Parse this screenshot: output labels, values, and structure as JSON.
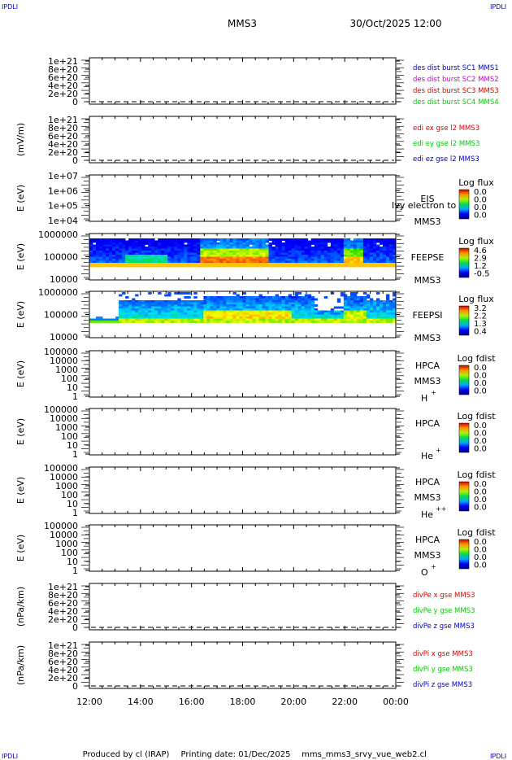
{
  "header": {
    "spacecraft": "MMS3",
    "datetime": "30/Oct/2025 12:00",
    "corner_mark": "IPDLI"
  },
  "footer": {
    "produced_by": "Produced by cl (IRAP)",
    "printing_date": "Printing date: 01/Dec/2025",
    "script_name": "mms_mms3_srvy_vue_web2.cl"
  },
  "x_axis": {
    "ticks": [
      "12:00",
      "14:00",
      "16:00",
      "18:00",
      "20:00",
      "22:00",
      "00:00"
    ]
  },
  "chart_data": [
    {
      "type": "line",
      "id": "des-dist",
      "ylabel": "",
      "yticks": [
        "1e+21",
        "8e+20",
        "6e+20",
        "4e+20",
        "2e+20",
        "0"
      ],
      "legend": [
        {
          "text": "des dist burst SC1 MMS1",
          "color": "#0000cc"
        },
        {
          "text": "des dist burst SC2 MMS2",
          "color": "#cc00cc"
        },
        {
          "text": "des dist burst SC3 MMS3",
          "color": "#dd0000"
        },
        {
          "text": "des dist burst SC4 MMS4",
          "color": "#00cc00"
        }
      ]
    },
    {
      "type": "line",
      "id": "edi",
      "ylabel": "(mV/m)",
      "yticks": [
        "1e+21",
        "8e+20",
        "6e+20",
        "4e+20",
        "2e+20",
        "0"
      ],
      "legend": [
        {
          "text": "edi ex gse l2 MMS3",
          "color": "#dd0000"
        },
        {
          "text": "edi ey gse l2 MMS3",
          "color": "#00cc00"
        },
        {
          "text": "edi ez gse l2 MMS3",
          "color": "#0000cc"
        }
      ]
    },
    {
      "type": "heatmap",
      "id": "eis",
      "ylabel": "E (eV)",
      "yticks": [
        "1e+07",
        "1e+06",
        "1e+05",
        "1e+04"
      ],
      "instrument": "EIS",
      "instrument_sub": "MMS3",
      "overlay_text": "Ivy electron to",
      "colorbar": {
        "title": "Log flux",
        "values": [
          "0.0",
          "0.0",
          "0.0",
          "0.0"
        ]
      }
    },
    {
      "type": "heatmap",
      "id": "feepse",
      "ylabel": "E (eV)",
      "yticks": [
        "1000000",
        "100000",
        "10000"
      ],
      "instrument": "FEEPSE",
      "instrument_sub": "MMS3",
      "colorbar": {
        "title": "Log flux",
        "values": [
          "4.6",
          "2.9",
          "1.2",
          "-0.5"
        ]
      }
    },
    {
      "type": "heatmap",
      "id": "feepsi",
      "ylabel": "E (eV)",
      "yticks": [
        "1000000",
        "100000",
        "10000"
      ],
      "instrument": "FEEPSI",
      "instrument_sub": "MMS3",
      "colorbar": {
        "title": "Log flux",
        "values": [
          "3.2",
          "2.2",
          "1.3",
          "0.4"
        ]
      }
    },
    {
      "type": "heatmap",
      "id": "hpca-h",
      "ylabel": "E (eV)",
      "yticks": [
        "100000",
        "10000",
        "1000",
        "100",
        "10",
        "1"
      ],
      "instrument": "HPCA",
      "instrument_sub": "MMS3",
      "species": "H",
      "species_charge": "+",
      "colorbar": {
        "title": "Log fdist",
        "values": [
          "0.0",
          "0.0",
          "0.0",
          "0.0"
        ]
      }
    },
    {
      "type": "heatmap",
      "id": "hpca-he",
      "ylabel": "E (eV)",
      "yticks": [
        "100000",
        "10000",
        "1000",
        "100",
        "10",
        "1"
      ],
      "instrument": "HPCA",
      "instrument_sub": "",
      "species": "He",
      "species_charge": "+",
      "colorbar": {
        "title": "Log fdist",
        "values": [
          "0.0",
          "0.0",
          "0.0",
          "0.0"
        ]
      }
    },
    {
      "type": "heatmap",
      "id": "hpca-he2",
      "ylabel": "E (eV)",
      "yticks": [
        "100000",
        "10000",
        "1000",
        "100",
        "10",
        "1"
      ],
      "instrument": "HPCA",
      "instrument_sub": "MMS3",
      "species": "He",
      "species_charge": "++",
      "colorbar": {
        "title": "Log fdist",
        "values": [
          "0.0",
          "0.0",
          "0.0",
          "0.0"
        ]
      }
    },
    {
      "type": "heatmap",
      "id": "hpca-o",
      "ylabel": "E (eV)",
      "yticks": [
        "100000",
        "10000",
        "1000",
        "100",
        "10",
        "1"
      ],
      "instrument": "HPCA",
      "instrument_sub": "MMS3",
      "species": "O",
      "species_charge": "+",
      "colorbar": {
        "title": "Log fdist",
        "values": [
          "0.0",
          "0.0",
          "0.0",
          "0.0"
        ]
      }
    },
    {
      "type": "line",
      "id": "divpe",
      "ylabel": "(nPa/km)",
      "yticks": [
        "1e+21",
        "8e+20",
        "6e+20",
        "4e+20",
        "2e+20",
        "0"
      ],
      "legend": [
        {
          "text": "divPe x gse MMS3",
          "color": "#dd0000"
        },
        {
          "text": "divPe y gse MMS3",
          "color": "#00cc00"
        },
        {
          "text": "divPe z gse MMS3",
          "color": "#0000cc"
        }
      ]
    },
    {
      "type": "line",
      "id": "divpi",
      "ylabel": "(nPa/km)",
      "yticks": [
        "1e+21",
        "8e+20",
        "6e+20",
        "4e+20",
        "2e+20",
        "0"
      ],
      "legend": [
        {
          "text": "divPi x gse MMS3",
          "color": "#dd0000"
        },
        {
          "text": "divPi y gse MMS3",
          "color": "#00cc00"
        },
        {
          "text": "divPi z gse MMS3",
          "color": "#0000cc"
        }
      ]
    }
  ]
}
